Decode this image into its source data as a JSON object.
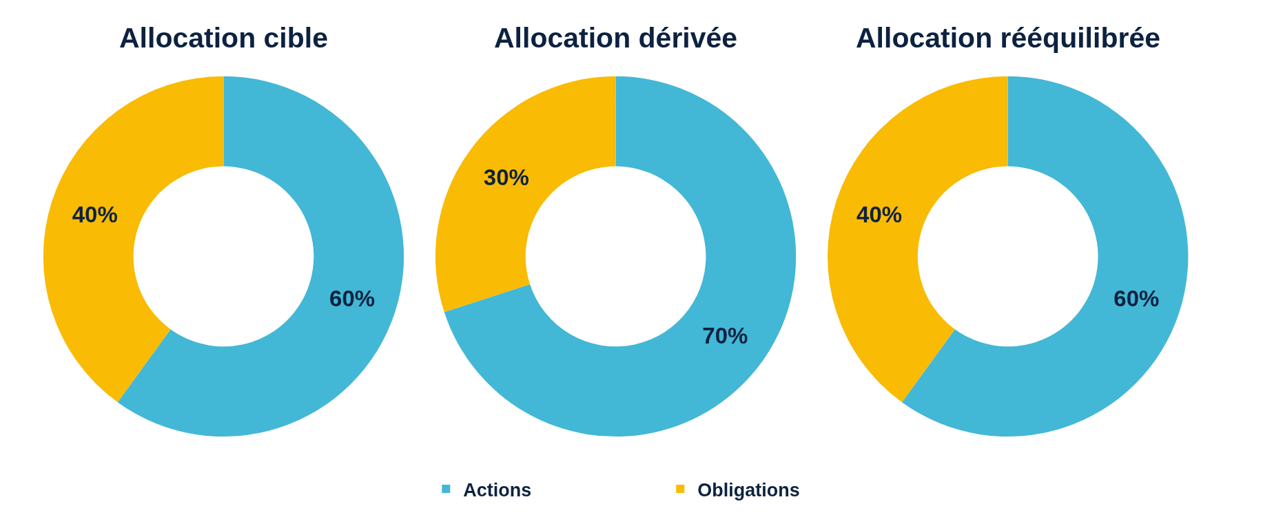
{
  "chart_data": [
    {
      "type": "donut",
      "title": "Allocation cible",
      "categories": [
        "Actions",
        "Obligations"
      ],
      "values": [
        60,
        40
      ],
      "colors": [
        "#43b7d6",
        "#f9bb03"
      ],
      "value_labels": [
        "60%",
        "40%"
      ],
      "legend": "bottom"
    },
    {
      "type": "donut",
      "title": "Allocation dérivée",
      "categories": [
        null,
        null
      ],
      "values": [
        70,
        30
      ],
      "colors": [
        "#43b7d6",
        "#f9bb03"
      ],
      "value_labels": [
        "70%",
        "30%"
      ]
    },
    {
      "type": "donut",
      "title": "Allocation rééquilibrée",
      "categories": [
        null,
        null
      ],
      "values": [
        60,
        40
      ],
      "colors": [
        "#43b7d6",
        "#f9bb03"
      ],
      "value_labels": [
        "60%",
        "40%"
      ]
    }
  ]
}
